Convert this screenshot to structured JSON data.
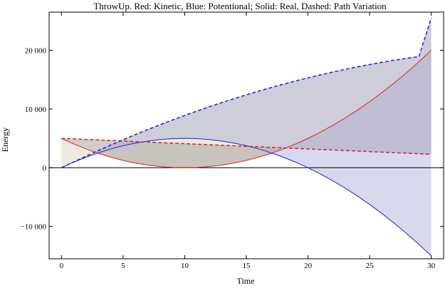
{
  "chart_data": {
    "type": "line",
    "title": "ThrowUp. Red: Kinetic, Blue: Potentional; Solid: Real, Dashed: Path Variation",
    "xlabel": "Time",
    "ylabel": "Energy",
    "xlim": [
      -1,
      31
    ],
    "ylim": [
      -15500,
      26500
    ],
    "xticks": [
      0,
      5,
      10,
      15,
      20,
      25,
      30
    ],
    "yticks": [
      -10000,
      0,
      10000,
      20000
    ],
    "ytick_labels": [
      "−10 000",
      "0",
      "10 000",
      "20 000"
    ],
    "x": [
      0,
      1,
      2,
      3,
      4,
      5,
      6,
      7,
      8,
      9,
      10,
      11,
      12,
      13,
      14,
      15,
      16,
      17,
      18,
      19,
      20,
      21,
      22,
      23,
      24,
      25,
      26,
      27,
      28,
      29,
      30
    ],
    "series": [
      {
        "name": "Kinetic (Real)",
        "color": "#dd2222",
        "style": "solid",
        "values": [
          5000,
          4050,
          3200,
          2450,
          1800,
          1250,
          800,
          450,
          200,
          50,
          0,
          50,
          200,
          450,
          800,
          1250,
          1800,
          2450,
          3200,
          4050,
          5000,
          6050,
          7200,
          8450,
          9800,
          11250,
          12800,
          14450,
          16200,
          18050,
          20000
        ]
      },
      {
        "name": "Potential (Real)",
        "color": "#2222dd",
        "style": "solid",
        "values": [
          0,
          950,
          1800,
          2550,
          3200,
          3750,
          4200,
          4550,
          4800,
          4950,
          5000,
          4950,
          4800,
          4550,
          4200,
          3750,
          3200,
          2550,
          1800,
          950,
          0,
          -1050,
          -2200,
          -3450,
          -4800,
          -6250,
          -7800,
          -9450,
          -11200,
          -13050,
          -15000
        ]
      },
      {
        "name": "Kinetic (Path Variation)",
        "color": "#dd2222",
        "style": "dashed",
        "values": [
          5000,
          4910,
          4820,
          4730,
          4640,
          4550,
          4460,
          4370,
          4280,
          4190,
          4100,
          4010,
          3920,
          3830,
          3740,
          3650,
          3560,
          3470,
          3380,
          3290,
          3200,
          3110,
          3020,
          2930,
          2840,
          2750,
          2660,
          2570,
          2480,
          2390,
          2300
        ]
      },
      {
        "name": "Potential (Path Variation)",
        "color": "#2222dd",
        "style": "dashed",
        "values": [
          0,
          1003,
          1981,
          2934,
          3862,
          4765,
          5643,
          6496,
          7324,
          8127,
          8905,
          9658,
          10386,
          11089,
          11767,
          12420,
          13048,
          13651,
          14229,
          14782,
          15310,
          15813,
          16291,
          16744,
          17172,
          17575,
          17953,
          18306,
          18634,
          18937,
          25500
        ]
      }
    ],
    "fill_colors": {
      "between_kinetic": "#a9a4a4",
      "between_potential": "#aaaad8",
      "potential_path_to_kinetic": "#ddd8c0"
    },
    "grid": false
  }
}
